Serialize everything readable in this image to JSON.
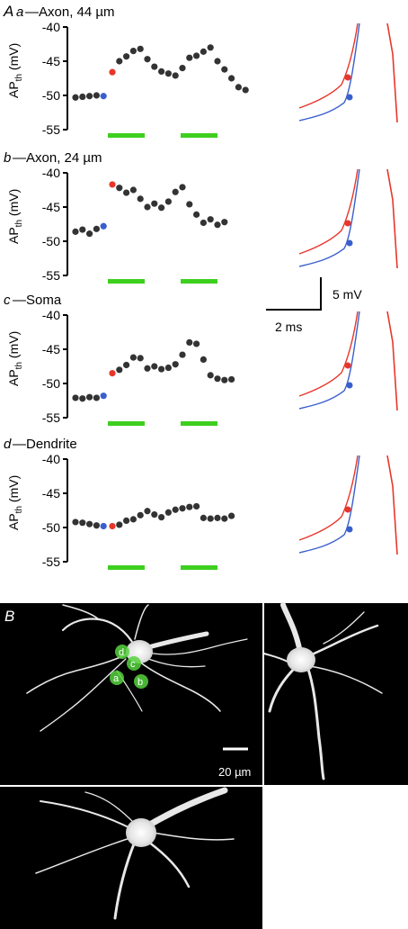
{
  "panel_letter_A": "A",
  "panel_letter_B": "B",
  "ylabel_main": "AP",
  "ylabel_sub": "th",
  "ylabel_unit": " (mV)",
  "scale_bar": {
    "voltage": "5 mV",
    "time": "2 ms"
  },
  "image_scale_label": "20 µm",
  "roi_labels": [
    "a",
    "b",
    "c",
    "d"
  ],
  "colors": {
    "dots": "#333333",
    "before": "#3a5fcd",
    "after": "#e8362a",
    "stim": "#3ecf1f",
    "micro_bg": "#000000"
  },
  "chart_data": [
    {
      "type": "scatter",
      "id": "a",
      "title_letter": "a",
      "title_prefix": " —",
      "title": "Axon, 44 µm",
      "ylim": [
        -55,
        -40
      ],
      "yticks": [
        "-40",
        "-45",
        "-50",
        "-55"
      ],
      "baseline": [
        -50.3,
        -50.2,
        -50.1,
        -50.0,
        -50.1
      ],
      "after": [
        -46.6,
        -45.0,
        -44.3,
        -43.5,
        -43.2,
        -44.7,
        -45.8,
        -46.5,
        -46.8,
        -47.1,
        -46.0,
        -44.5,
        -44.2,
        -43.6,
        -43.0,
        -45.0,
        -46.2,
        -47.5,
        -48.8,
        -49.2
      ],
      "traces": {
        "before_dot": "blue",
        "after_dot": "red"
      }
    },
    {
      "type": "scatter",
      "id": "b",
      "title_letter": "b",
      "title_prefix": "—",
      "title": "Axon, 24 µm",
      "ylim": [
        -55,
        -40
      ],
      "yticks": [
        "-40",
        "-45",
        "-50",
        "-55"
      ],
      "baseline": [
        -48.6,
        -48.3,
        -48.9,
        -48.2,
        -47.8
      ],
      "after": [
        -41.7,
        -42.2,
        -42.9,
        -42.5,
        -43.8,
        -45.0,
        -44.5,
        -45.1,
        -44.2,
        -42.8,
        -42.1,
        -44.6,
        -46.1,
        -47.3,
        -46.8,
        -47.6,
        -47.2
      ],
      "traces": {
        "before_dot": "blue",
        "after_dot": "red"
      }
    },
    {
      "type": "scatter",
      "id": "c",
      "title_letter": "c",
      "title_prefix": "—",
      "title": "Soma",
      "ylim": [
        -55,
        -40
      ],
      "yticks": [
        "-40",
        "-45",
        "-50",
        "-55"
      ],
      "baseline": [
        -52.1,
        -52.2,
        -52.0,
        -52.1,
        -51.8
      ],
      "after": [
        -48.5,
        -48.0,
        -47.3,
        -46.2,
        -46.3,
        -47.8,
        -47.5,
        -47.9,
        -47.7,
        -47.2,
        -45.8,
        -44.0,
        -44.2,
        -46.5,
        -48.8,
        -49.3,
        -49.5,
        -49.4
      ],
      "traces": {
        "before_dot": "blue",
        "after_dot": "red"
      }
    },
    {
      "type": "scatter",
      "id": "d",
      "title_letter": "d",
      "title_prefix": "—",
      "title": "Dendrite",
      "ylim": [
        -55,
        -40
      ],
      "yticks": [
        "-40",
        "-45",
        "-50",
        "-55"
      ],
      "baseline": [
        -49.2,
        -49.3,
        -49.5,
        -49.7,
        -49.8
      ],
      "after": [
        -49.8,
        -49.6,
        -49.0,
        -48.8,
        -48.2,
        -47.6,
        -48.1,
        -48.5,
        -47.8,
        -47.4,
        -47.2,
        -47.0,
        -46.9,
        -48.6,
        -48.7,
        -48.6,
        -48.7,
        -48.3
      ],
      "traces": {
        "before_dot": "blue",
        "after_dot": "red"
      }
    }
  ]
}
